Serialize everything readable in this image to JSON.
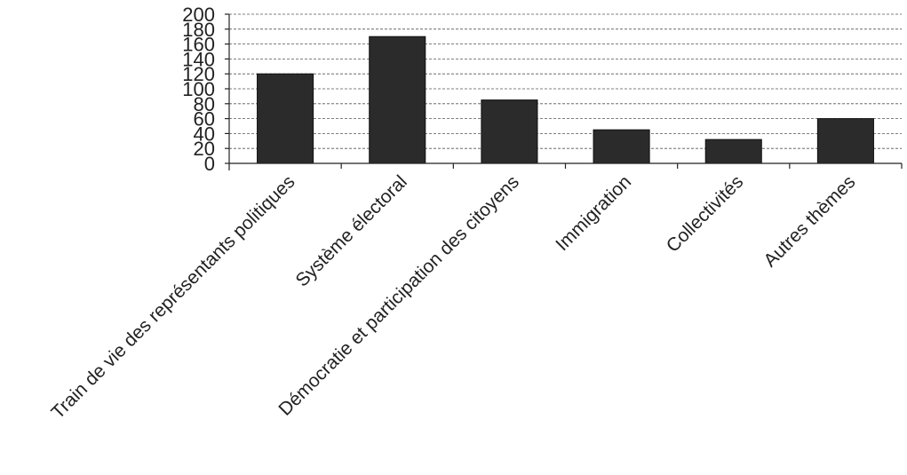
{
  "chart_data": {
    "type": "bar",
    "title": "",
    "xlabel": "",
    "ylabel": "",
    "categories": [
      "Train de vie des représentants politiques",
      "Système électoral",
      "Démocratie  et participation des citoyens",
      "Immigration",
      "Collectivités",
      "Autres thèmes"
    ],
    "series": [
      {
        "values": [
          120,
          170,
          85,
          45,
          32,
          60
        ]
      }
    ],
    "ylim": [
      0,
      200
    ],
    "yticks": [
      "0",
      "20",
      "40",
      "60",
      "80",
      "100",
      "120",
      "140",
      "160",
      "180",
      "200"
    ],
    "grid": true,
    "legend": "none",
    "colors": {
      "bar": "#2b2b2b",
      "grid": "#555555",
      "axis": "#222222"
    }
  }
}
